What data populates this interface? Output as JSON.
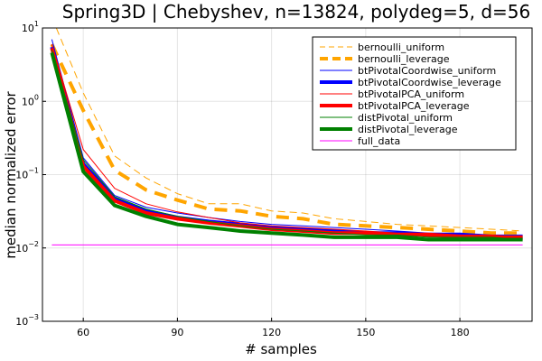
{
  "chart_data": {
    "type": "line",
    "title": "Spring3D | Chebyshev, n=13824, polydeg=5, d=56",
    "xlabel": "# samples",
    "ylabel": "median normalized error",
    "xlim": [
      47,
      203
    ],
    "ylim": [
      0.001,
      10
    ],
    "yscale": "log",
    "grid": true,
    "legend_position": "top-right",
    "xticks": [
      60,
      90,
      120,
      150,
      180
    ],
    "xtick_labels": [
      "60",
      "90",
      "120",
      "150",
      "180"
    ],
    "yticks": [
      0.001,
      0.01,
      0.1,
      1,
      10
    ],
    "ytick_labels": [
      {
        "base": "10",
        "exp": "−3"
      },
      {
        "base": "10",
        "exp": "−2"
      },
      {
        "base": "10",
        "exp": "−1"
      },
      {
        "base": "10",
        "exp": "0"
      },
      {
        "base": "10",
        "exp": "1"
      }
    ],
    "x": [
      50,
      60,
      70,
      80,
      90,
      100,
      110,
      120,
      130,
      140,
      150,
      160,
      170,
      180,
      190,
      200
    ],
    "series": [
      {
        "name": "bernoulli_uniform",
        "color": "#FFA500",
        "width": 1,
        "dash": "8,5",
        "values": [
          14.0,
          1.3,
          0.18,
          0.09,
          0.055,
          0.04,
          0.04,
          0.032,
          0.03,
          0.025,
          0.023,
          0.021,
          0.02,
          0.019,
          0.018,
          0.017
        ]
      },
      {
        "name": "bernoulli_leverage",
        "color": "#FFA500",
        "width": 4,
        "dash": "14,9",
        "values": [
          6.0,
          0.75,
          0.115,
          0.062,
          0.045,
          0.034,
          0.032,
          0.027,
          0.025,
          0.021,
          0.02,
          0.019,
          0.018,
          0.017,
          0.016,
          0.016
        ]
      },
      {
        "name": "btPivotalCoordwise_uniform",
        "color": "#0000FF",
        "width": 1,
        "dash": "",
        "values": [
          7.0,
          0.17,
          0.052,
          0.036,
          0.03,
          0.026,
          0.023,
          0.021,
          0.02,
          0.019,
          0.018,
          0.017,
          0.016,
          0.016,
          0.015,
          0.015
        ]
      },
      {
        "name": "btPivotalCoordwise_leverage",
        "color": "#0000FF",
        "width": 4,
        "dash": "",
        "values": [
          5.5,
          0.14,
          0.047,
          0.032,
          0.026,
          0.023,
          0.021,
          0.019,
          0.018,
          0.017,
          0.016,
          0.016,
          0.015,
          0.015,
          0.014,
          0.014
        ]
      },
      {
        "name": "btPivotalPCA_uniform",
        "color": "#FF0000",
        "width": 1,
        "dash": "",
        "values": [
          6.0,
          0.22,
          0.065,
          0.04,
          0.031,
          0.026,
          0.022,
          0.02,
          0.019,
          0.018,
          0.017,
          0.016,
          0.016,
          0.015,
          0.015,
          0.014
        ]
      },
      {
        "name": "btPivotalPCA_leverage",
        "color": "#FF0000",
        "width": 4,
        "dash": "",
        "values": [
          5.3,
          0.13,
          0.044,
          0.03,
          0.025,
          0.022,
          0.02,
          0.018,
          0.017,
          0.016,
          0.016,
          0.015,
          0.015,
          0.014,
          0.014,
          0.014
        ]
      },
      {
        "name": "distPivotal_uniform",
        "color": "#008000",
        "width": 1,
        "dash": "",
        "values": [
          5.0,
          0.16,
          0.05,
          0.034,
          0.027,
          0.023,
          0.02,
          0.018,
          0.017,
          0.016,
          0.015,
          0.015,
          0.014,
          0.014,
          0.014,
          0.013
        ]
      },
      {
        "name": "distPivotal_leverage",
        "color": "#008000",
        "width": 4,
        "dash": "",
        "values": [
          4.6,
          0.11,
          0.038,
          0.027,
          0.021,
          0.019,
          0.017,
          0.016,
          0.015,
          0.014,
          0.014,
          0.014,
          0.013,
          0.013,
          0.013,
          0.013
        ]
      },
      {
        "name": "full_data",
        "color": "#FF00FF",
        "width": 1,
        "dash": "",
        "values": [
          0.011,
          0.011,
          0.011,
          0.011,
          0.011,
          0.011,
          0.011,
          0.011,
          0.011,
          0.011,
          0.011,
          0.011,
          0.011,
          0.011,
          0.011,
          0.011
        ]
      }
    ]
  }
}
